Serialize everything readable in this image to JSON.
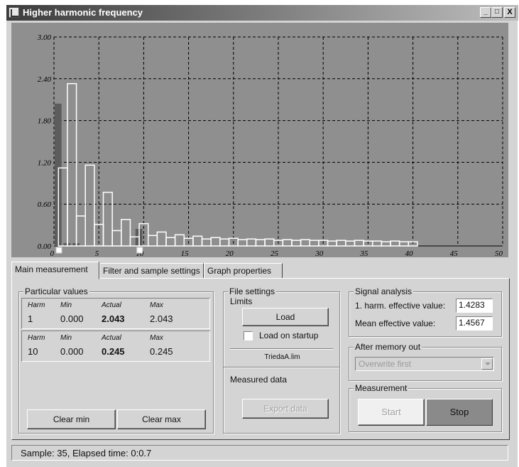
{
  "window": {
    "title": "Higher harmonic frequency",
    "minimize": "_",
    "maximize": "□",
    "close": "X"
  },
  "chart_data": {
    "type": "bar",
    "xlim": [
      0,
      50
    ],
    "ylim": [
      0,
      3
    ],
    "yticks": [
      "0.00",
      "0.60",
      "1.20",
      "1.80",
      "2.40",
      "3.00"
    ],
    "xticks": [
      "0",
      "5",
      "10",
      "15",
      "20",
      "25",
      "30",
      "35",
      "40",
      "45",
      "50"
    ],
    "grid": true,
    "series": [
      {
        "values": [
          [
            1,
            2.043
          ],
          [
            2,
            0.04
          ],
          [
            3,
            0.04
          ],
          [
            10,
            0.245
          ]
        ],
        "color": "#5c5c5c"
      },
      {
        "values": [
          [
            1,
            1.12
          ],
          [
            2,
            2.33
          ],
          [
            3,
            0.43
          ],
          [
            4,
            1.16
          ],
          [
            5,
            0.31
          ],
          [
            6,
            0.77
          ],
          [
            7,
            0.22
          ],
          [
            8,
            0.38
          ],
          [
            9,
            0.13
          ],
          [
            10,
            0.32
          ],
          [
            11,
            0.15
          ],
          [
            12,
            0.2
          ],
          [
            13,
            0.12
          ],
          [
            14,
            0.16
          ],
          [
            15,
            0.11
          ],
          [
            16,
            0.14
          ],
          [
            17,
            0.1
          ],
          [
            18,
            0.12
          ],
          [
            19,
            0.1
          ],
          [
            20,
            0.11
          ],
          [
            21,
            0.09
          ],
          [
            22,
            0.1
          ],
          [
            23,
            0.09
          ],
          [
            24,
            0.1
          ],
          [
            25,
            0.08
          ],
          [
            26,
            0.09
          ],
          [
            27,
            0.08
          ],
          [
            28,
            0.09
          ],
          [
            29,
            0.08
          ],
          [
            30,
            0.08
          ],
          [
            31,
            0.07
          ],
          [
            32,
            0.08
          ],
          [
            33,
            0.07
          ],
          [
            34,
            0.08
          ],
          [
            35,
            0.07
          ],
          [
            36,
            0.07
          ],
          [
            37,
            0.06
          ],
          [
            38,
            0.07
          ],
          [
            39,
            0.06
          ],
          [
            40,
            0.06
          ]
        ],
        "color": "#ffffff"
      }
    ],
    "markers": [
      1,
      10
    ]
  },
  "tabs": [
    {
      "label": "Main measurement",
      "active": true
    },
    {
      "label": "Filter and sample settings",
      "active": false
    },
    {
      "label": "Graph properties",
      "active": false
    }
  ],
  "particular": {
    "label": "Particular values",
    "headers": [
      "Harm",
      "Min",
      "Actual",
      "Max"
    ],
    "rows": [
      {
        "harm": "1",
        "min": "0.000",
        "actual": "2.043",
        "max": "2.043"
      },
      {
        "harm": "10",
        "min": "0.000",
        "actual": "0.245",
        "max": "0.245"
      }
    ],
    "clear_min": "Clear min",
    "clear_max": "Clear max"
  },
  "file": {
    "label": "File settings",
    "limits": "Limits",
    "load": "Load",
    "load_on_startup": "Load on startup",
    "file_name": "TriedaA.lim",
    "measured_data": "Measured data",
    "export": "Export data"
  },
  "signal": {
    "label": "Signal analysis",
    "harm_label": "1. harm. effective value:",
    "harm_value": "1.4283",
    "mean_label": "Mean effective value:",
    "mean_value": "1.4567"
  },
  "memory": {
    "label": "After memory out",
    "selected": "Overwrite first"
  },
  "measurement": {
    "label": "Measurement",
    "start": "Start",
    "stop": "Stop",
    "stop_color": "#8a8a8a",
    "start_color": "#f0f0f0"
  },
  "status": {
    "text": "Sample: 35,  Elapsed time: 0:0.7"
  }
}
